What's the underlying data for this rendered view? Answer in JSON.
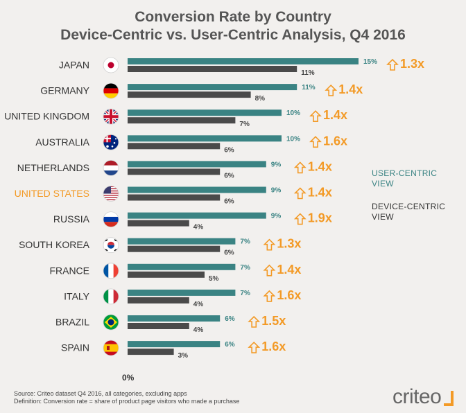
{
  "title_line1": "Conversion Rate by Country",
  "title_line2": "Device-Centric vs. User-Centric Analysis, Q4 2016",
  "chart_data": {
    "type": "bar",
    "orientation": "horizontal",
    "title": "Conversion Rate by Country",
    "subtitle": "Device-Centric vs. User-Centric Analysis, Q4 2016",
    "categories": [
      "JAPAN",
      "GERMANY",
      "UNITED KINGDOM",
      "AUSTRALIA",
      "NETHERLANDS",
      "UNITED STATES",
      "RUSSIA",
      "SOUTH KOREA",
      "FRANCE",
      "ITALY",
      "BRAZIL",
      "SPAIN"
    ],
    "highlight_category": "UNITED STATES",
    "series": [
      {
        "name": "USER-CENTRIC VIEW",
        "color": "#3a8383",
        "values": [
          15,
          11,
          10,
          10,
          9,
          9,
          9,
          7,
          7,
          7,
          6,
          6
        ],
        "labels": [
          "15%",
          "11%",
          "10%",
          "10%",
          "9%",
          "9%",
          "9%",
          "7%",
          "7%",
          "7%",
          "6%",
          "6%"
        ]
      },
      {
        "name": "DEVICE-CENTRIC VIEW",
        "color": "#4a4a4a",
        "values": [
          11,
          8,
          7,
          6,
          6,
          6,
          4,
          6,
          5,
          4,
          4,
          3
        ],
        "labels": [
          "11%",
          "8%",
          "7%",
          "6%",
          "6%",
          "6%",
          "4%",
          "6%",
          "5%",
          "4%",
          "4%",
          "3%"
        ]
      }
    ],
    "multipliers": [
      "1.3x",
      "1.4x",
      "1.4x",
      "1.6x",
      "1.4x",
      "1.4x",
      "1.9x",
      "1.3x",
      "1.4x",
      "1.6x",
      "1.5x",
      "1.6x"
    ],
    "x_axis_label": "0%",
    "xlim": [
      0,
      15
    ],
    "grid": false,
    "legend_position": "right"
  },
  "colors": {
    "user": "#3a8383",
    "device": "#4a4a4a",
    "accent": "#f39a26",
    "highlight_label": "#f39a26",
    "label": "#333333"
  },
  "flags": [
    "japan-flag",
    "germany-flag",
    "uk-flag",
    "australia-flag",
    "netherlands-flag",
    "usa-flag",
    "russia-flag",
    "south-korea-flag",
    "france-flag",
    "italy-flag",
    "brazil-flag",
    "spain-flag"
  ],
  "legend": {
    "user_line1": "USER-CENTRIC",
    "user_line2": "VIEW",
    "device_line1": "DEVICE-CENTRIC",
    "device_line2": "VIEW"
  },
  "footer": {
    "source": "Source: Criteo dataset Q4 2016, all categories, excluding apps",
    "definition": "Definition: Conversion rate = share of product page visitors who made a purchase"
  },
  "logo": "criteo"
}
